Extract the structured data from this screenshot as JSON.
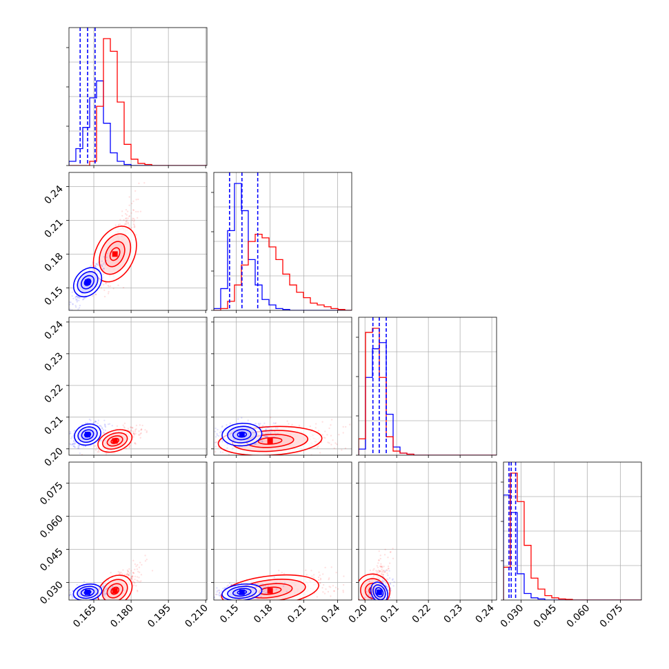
{
  "chart_data": {
    "type": "corner",
    "title": "",
    "n_params": 4,
    "series": [
      {
        "name": "blue",
        "color": "#0000ff",
        "medians": [
          0.1625,
          0.155,
          0.2045,
          0.0255
        ],
        "quantiles": [
          [
            0.1595,
            0.1655
          ],
          [
            0.144,
            0.169
          ],
          [
            0.2025,
            0.2067
          ],
          [
            0.0245,
            0.0275
          ]
        ],
        "hist": [
          {
            "edges": [
              0.155,
              0.2105
            ],
            "counts": [
              2,
              8,
              18,
              32,
              40,
              20,
              6,
              2,
              0.5,
              0,
              0,
              0,
              0,
              0,
              0,
              0,
              0,
              0,
              0,
              0
            ]
          },
          {
            "edges": [
              0.13,
              0.2525
            ],
            "counts": [
              1,
              12,
              44,
              70,
              55,
              28,
              14,
              6,
              3,
              1,
              0.5,
              0,
              0,
              0,
              0,
              0,
              0,
              0,
              0,
              0
            ]
          },
          {
            "edges": [
              0.198,
              0.2415
            ],
            "counts": [
              3,
              38,
              52,
              55,
              20,
              4,
              1,
              0.5,
              0,
              0,
              0,
              0,
              0,
              0,
              0,
              0,
              0,
              0,
              0,
              0
            ]
          },
          {
            "edges": [
              0.022,
              0.0845
            ],
            "counts": [
              48,
              40,
              12,
              3,
              1,
              0.5,
              0,
              0,
              0,
              0,
              0,
              0,
              0,
              0,
              0,
              0,
              0,
              0,
              0,
              0
            ]
          }
        ]
      },
      {
        "name": "red",
        "color": "#ff0000",
        "medians": [
          0.1735,
          0.18,
          0.2025,
          0.0262
        ],
        "quantiles": [
          [
            0.1685,
            0.1785
          ],
          [
            0.16,
            0.205
          ],
          [
            0.201,
            0.2045
          ],
          [
            0.0245,
            0.0305
          ]
        ],
        "hist": [
          {
            "edges": [
              0.155,
              0.2105
            ],
            "counts": [
              0,
              0,
              0,
              2,
              28,
              60,
              54,
              30,
              10,
              3,
              1,
              0.5,
              0,
              0,
              0,
              0,
              0,
              0,
              0,
              0
            ]
          },
          {
            "edges": [
              0.13,
              0.2525
            ],
            "counts": [
              0,
              1,
              5,
              14,
              25,
              38,
              42,
              40,
              35,
              28,
              20,
              14,
              10,
              7,
              4,
              3,
              2,
              1,
              0.5,
              0
            ]
          },
          {
            "edges": [
              0.198,
              0.2415
            ],
            "counts": [
              8,
              60,
              62,
              38,
              9,
              2,
              1,
              0.5,
              0,
              0,
              0,
              0,
              0,
              0,
              0,
              0,
              0,
              0,
              0,
              0
            ]
          },
          {
            "edges": [
              0.022,
              0.0845
            ],
            "counts": [
              15,
              58,
              45,
              25,
              10,
              5,
              2,
              1,
              0.5,
              0.3,
              0,
              0,
              0,
              0,
              0,
              0,
              0,
              0,
              0,
              0
            ]
          }
        ]
      }
    ],
    "axis_ranges": [
      [
        0.155,
        0.2105
      ],
      [
        0.13,
        0.2525
      ],
      [
        0.198,
        0.2415
      ],
      [
        0.022,
        0.0845
      ]
    ],
    "ticks": [
      {
        "values": [
          0.165,
          0.18,
          0.195,
          0.21
        ],
        "labels": [
          "0.165",
          "0.180",
          "0.195",
          "0.210"
        ]
      },
      {
        "values": [
          0.15,
          0.18,
          0.21,
          0.24
        ],
        "labels": [
          "0.15",
          "0.18",
          "0.21",
          "0.24"
        ]
      },
      {
        "values": [
          0.2,
          0.21,
          0.22,
          0.23,
          0.24
        ],
        "labels": [
          "0.20",
          "0.21",
          "0.22",
          "0.23",
          "0.24"
        ]
      },
      {
        "values": [
          0.03,
          0.045,
          0.06,
          0.075
        ],
        "labels": [
          "0.030",
          "0.045",
          "0.060",
          "0.075"
        ]
      }
    ],
    "grid": true
  }
}
